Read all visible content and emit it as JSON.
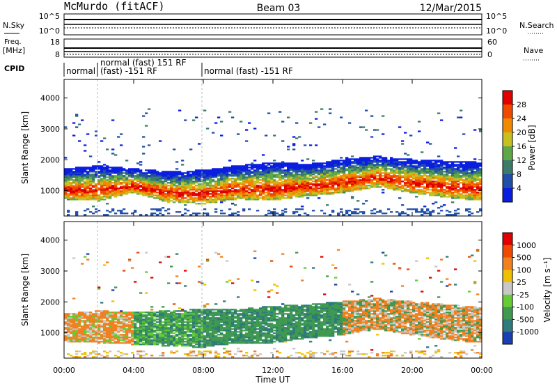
{
  "header": {
    "radar": "McMurdo (fitACF)",
    "beam": "Beam 03",
    "date": "12/Mar/2015"
  },
  "noise_panel": {
    "left_label": "N.Sky",
    "right_label": "N.Search",
    "ticks_left": [
      "10^5",
      "10^0"
    ],
    "ticks_right": [
      "10^5",
      "10^0"
    ]
  },
  "freq_panel": {
    "left_label_1": "Freq.",
    "left_label_2": "[MHz]",
    "ticks_left": [
      "18",
      "8"
    ],
    "right_label": "Nave",
    "ticks_right": [
      "60",
      "0"
    ]
  },
  "cpid": {
    "label": "CPID",
    "segments": [
      "normal",
      "normal (fast) 151 RF",
      "(fast) -151 RF",
      "normal (fast) -151 RF"
    ]
  },
  "xaxis": {
    "label": "Time UT",
    "ticks": [
      "00:00",
      "04:00",
      "08:00",
      "12:00",
      "16:00",
      "20:00",
      "00:00"
    ]
  },
  "chart_data": [
    {
      "type": "heatmap",
      "title": "Power",
      "ylabel": "Slant Range [km]",
      "xlabel": "Time UT",
      "xlim": [
        0,
        24
      ],
      "ylim": [
        180,
        4600
      ],
      "yticks": [
        "1000",
        "2000",
        "3000",
        "4000"
      ],
      "colorbar": {
        "label": "Power [dB]",
        "ticks": [
          "4",
          "8",
          "12",
          "16",
          "20",
          "24",
          "28"
        ],
        "range": [
          0,
          30
        ],
        "colors": [
          "#0a1ee0",
          "#1f4fa8",
          "#3c7a6a",
          "#5fa848",
          "#c8c020",
          "#f08a00",
          "#f04a00",
          "#e00000"
        ]
      },
      "main_echo_band_km": {
        "hours": [
          0,
          2,
          4,
          6,
          8,
          10,
          12,
          14,
          16,
          18,
          20,
          22,
          24
        ],
        "lower": [
          700,
          650,
          900,
          600,
          550,
          700,
          650,
          800,
          900,
          1100,
          900,
          750,
          650
        ],
        "upper": [
          1700,
          1800,
          1700,
          1600,
          1650,
          1800,
          1900,
          1850,
          2000,
          2100,
          2000,
          1950,
          1900
        ]
      }
    },
    {
      "type": "heatmap",
      "title": "Velocity",
      "ylabel": "Slant Range [km]",
      "xlabel": "Time UT",
      "xlim": [
        0,
        24
      ],
      "ylim": [
        180,
        4600
      ],
      "yticks": [
        "1000",
        "2000",
        "3000",
        "4000"
      ],
      "colorbar": {
        "label": "Velocity [m s⁻¹]",
        "ticks": [
          "1000",
          "500",
          "100",
          "25",
          "-25",
          "-100",
          "-500",
          "-1000"
        ],
        "colors": [
          "#1a3fb0",
          "#2f7a7a",
          "#3f9a50",
          "#66cc33",
          "#c8c8c8",
          "#f0c000",
          "#f08020",
          "#f04a00",
          "#e00000"
        ]
      },
      "main_echo_band_km": {
        "hours": [
          0,
          2,
          4,
          6,
          8,
          10,
          12,
          14,
          16,
          18,
          20,
          22,
          24
        ],
        "lower": [
          700,
          650,
          600,
          550,
          500,
          650,
          650,
          800,
          900,
          1100,
          900,
          750,
          650
        ],
        "upper": [
          1600,
          1700,
          1650,
          1700,
          1750,
          1750,
          1850,
          1900,
          2000,
          2100,
          2000,
          1900,
          1800
        ]
      }
    }
  ]
}
